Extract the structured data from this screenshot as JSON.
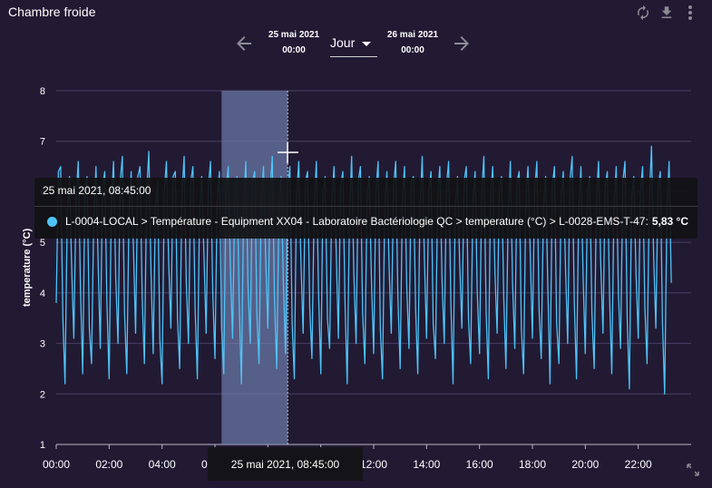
{
  "header": {
    "title": "Chambre froide"
  },
  "toolbar": {
    "icons": [
      "refresh-icon",
      "download-icon",
      "more-vertical-icon"
    ]
  },
  "date_nav": {
    "start_date": "25 mai 2021",
    "start_time": "00:00",
    "period": "Jour",
    "end_date": "26 mai 2021",
    "end_time": "00:00"
  },
  "tooltip": {
    "datetime": "25 mai 2021, 08:45:00",
    "series_label": "L-0004-LOCAL > Température - Equipment XX04 - Laboratoire Bactériologie QC > temperature (°C) > L-0028-EMS-T-47:",
    "value": "5,83 °C",
    "color": "#4fc3f7"
  },
  "crosshair_label": "25 mai 2021, 08:45:00",
  "chart_data": {
    "type": "line",
    "ylabel": "temperature (°C)",
    "ylim": [
      1,
      8
    ],
    "y_ticks": [
      "1",
      "2",
      "3",
      "4",
      "5",
      "6",
      "7",
      "8"
    ],
    "xlim": [
      "00:00",
      "24:00"
    ],
    "x_ticks": [
      "00:00",
      "02:00",
      "04:00",
      "06:00",
      "08:00",
      "10:00",
      "12:00",
      "14:00",
      "16:00",
      "18:00",
      "20:00",
      "22:00"
    ],
    "highlight_band": [
      "06:15",
      "08:45"
    ],
    "crosshair_x": "08:45",
    "series": [
      {
        "color": "#4fc3f7",
        "x_step_minutes": 5,
        "values": [
          3.8,
          6.4,
          6.5,
          3.5,
          2.2,
          5.6,
          6.3,
          4.5,
          3.1,
          5.9,
          6.6,
          4.1,
          2.4,
          6.0,
          6.3,
          3.3,
          2.6,
          5.4,
          6.5,
          4.6,
          2.9,
          6.1,
          6.4,
          3.8,
          2.3,
          5.8,
          6.6,
          4.3,
          3.0,
          6.2,
          6.7,
          3.6,
          2.4,
          5.5,
          6.4,
          4.9,
          3.2,
          6.3,
          6.5,
          3.9,
          2.6,
          6.0,
          6.8,
          4.4,
          2.8,
          5.7,
          6.2,
          3.1,
          2.2,
          6.0,
          6.6,
          4.6,
          3.3,
          6.3,
          6.4,
          3.5,
          2.5,
          5.9,
          6.7,
          4.2,
          3.0,
          6.2,
          6.5,
          3.7,
          2.3,
          5.6,
          6.3,
          4.8,
          3.2,
          6.1,
          6.6,
          4.0,
          2.7,
          5.8,
          6.4,
          3.3,
          2.4,
          6.0,
          6.5,
          4.5,
          3.1,
          5.9,
          6.3,
          3.8,
          2.2,
          5.7,
          6.6,
          4.1,
          3.0,
          6.2,
          6.4,
          3.6,
          2.6,
          5.8,
          6.5,
          4.7,
          3.3,
          6.0,
          6.7,
          3.9,
          2.5,
          5.6,
          6.3,
          4.3,
          2.8,
          6.1,
          6.5,
          3.4,
          2.3,
          5.9,
          6.6,
          4.6,
          3.2,
          6.2,
          6.4,
          3.7,
          2.7,
          5.7,
          6.6,
          4.0,
          2.4,
          6.0,
          6.3,
          3.5,
          2.9,
          5.8,
          6.5,
          4.8,
          3.1,
          6.1,
          6.4,
          3.8,
          2.2,
          5.5,
          6.7,
          4.4,
          3.0,
          6.2,
          6.5,
          3.6,
          2.6,
          5.9,
          6.3,
          4.2,
          2.8,
          6.0,
          6.6,
          3.3,
          2.3,
          5.7,
          6.4,
          4.5,
          3.2,
          6.1,
          6.6,
          3.9,
          2.5,
          5.8,
          6.5,
          4.1,
          2.9,
          6.2,
          6.3,
          3.7,
          2.4,
          5.6,
          6.7,
          4.7,
          3.1,
          6.0,
          6.4,
          3.4,
          2.7,
          5.9,
          6.5,
          4.3,
          3.0,
          6.1,
          6.6,
          3.8,
          2.2,
          5.7,
          6.3,
          4.6,
          3.3,
          6.2,
          6.5,
          3.5,
          2.6,
          5.8,
          6.4,
          4.0,
          2.8,
          6.0,
          6.7,
          3.6,
          2.3,
          5.9,
          6.5,
          4.4,
          3.2,
          6.1,
          6.3,
          3.9,
          2.5,
          5.6,
          6.6,
          4.2,
          2.9,
          6.2,
          6.4,
          3.3,
          2.4,
          5.8,
          6.5,
          4.8,
          3.1,
          6.0,
          6.6,
          3.7,
          2.7,
          5.7,
          6.3,
          4.1,
          2.2,
          6.1,
          6.5,
          3.4,
          2.6,
          5.9,
          6.4,
          4.5,
          3.0,
          6.2,
          6.7,
          3.8,
          2.3,
          5.6,
          6.5,
          4.3,
          2.8,
          6.0,
          6.3,
          3.6,
          2.5,
          5.8,
          6.6,
          4.6,
          3.2,
          6.1,
          6.4,
          3.9,
          2.4,
          5.7,
          6.5,
          4.0,
          2.9,
          6.2,
          6.6,
          3.5,
          2.1,
          5.9,
          6.3,
          4.4,
          3.1,
          6.0,
          6.5,
          3.7,
          2.6,
          5.8,
          6.9,
          4.7,
          3.3,
          6.1,
          6.4,
          3.4,
          2.0,
          5.6,
          6.6,
          4.2
        ]
      }
    ]
  }
}
